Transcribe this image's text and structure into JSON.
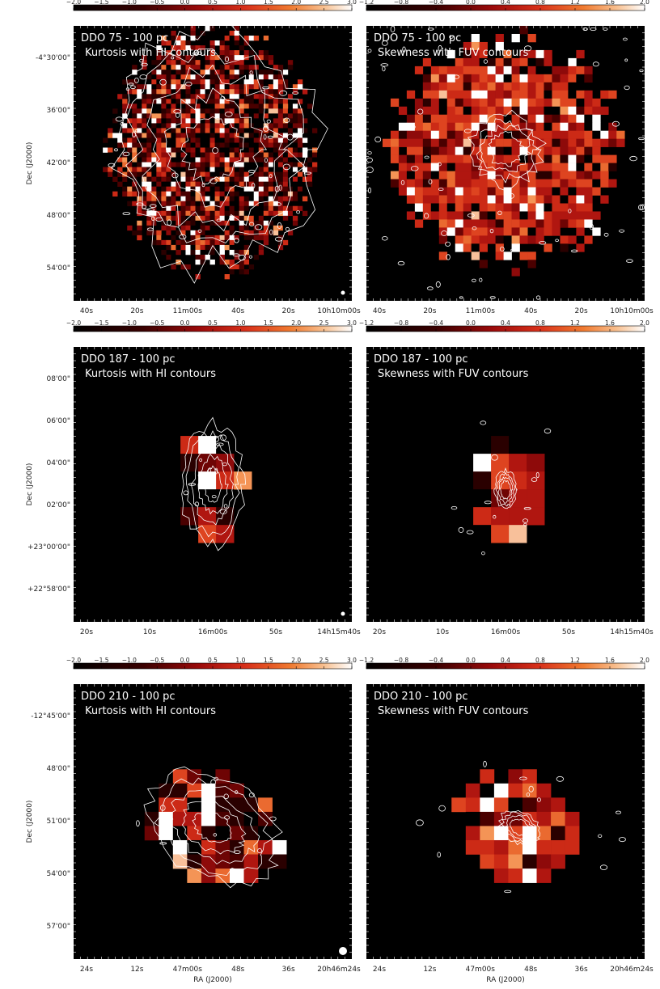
{
  "colors": {
    "background": "#ffffff",
    "panel": "#000000",
    "contour": "#ffffff"
  },
  "chart_data": [
    {
      "type": "heatmap",
      "row": 0,
      "col": 0,
      "seed": 11,
      "title_line1": "DDO 75 - 100 pc",
      "title_line2": "Kurtosis with HI contours",
      "colorbar": {
        "ticks": [
          "−2.0",
          "−1.5",
          "−1.0",
          "−0.5",
          "0.0",
          "0.5",
          "1.0",
          "1.5",
          "2.0",
          "2.5",
          "3.0"
        ],
        "range": [
          -2.0,
          3.0
        ]
      },
      "xticks": [
        "40s",
        "20s",
        "11m00s",
        "40s",
        "20s",
        "10h10m00s"
      ],
      "yticks": [
        "-4°30'00\"",
        "36'00\"",
        "42'00\"",
        "48'00\"",
        "54'00\""
      ],
      "ylabel": "Dec (J2000)",
      "xlabel": "",
      "blob": {
        "cx": 0.5,
        "cy": 0.45,
        "rx": 0.36,
        "ry": 0.42,
        "grid": 0.0175,
        "shape": "irregular"
      }
    },
    {
      "type": "heatmap",
      "row": 0,
      "col": 1,
      "seed": 23,
      "title_line1": "DDO 75 - 100 pc",
      "title_line2": "Skewness with FUV contours",
      "colorbar": {
        "ticks": [
          "−1.2",
          "−0.8",
          "−0.4",
          "0.0",
          "0.4",
          "0.8",
          "1.2",
          "1.6",
          "2.0"
        ],
        "range": [
          -1.2,
          2.0
        ]
      },
      "xticks": [
        "40s",
        "20s",
        "11m00s",
        "40s",
        "20s",
        "10h10m00s"
      ],
      "yticks": [],
      "ylabel": "",
      "xlabel": "",
      "blob": {
        "cx": 0.5,
        "cy": 0.45,
        "rx": 0.4,
        "ry": 0.4,
        "grid": 0.029,
        "shape": "irregular"
      }
    },
    {
      "type": "heatmap",
      "row": 1,
      "col": 0,
      "seed": 37,
      "title_line1": "DDO 187 - 100 pc",
      "title_line2": "Kurtosis with HI contours",
      "colorbar": {
        "ticks": [
          "−2.0",
          "−1.5",
          "−1.0",
          "−0.5",
          "0.0",
          "0.5",
          "1.0",
          "1.5",
          "2.0",
          "2.5",
          "3.0"
        ],
        "range": [
          -2.0,
          3.0
        ]
      },
      "xticks": [
        "20s",
        "10s",
        "16m00s",
        "50s",
        "14h15m40s"
      ],
      "yticks": [
        "08'00\"",
        "06'00\"",
        "04'00\"",
        "02'00\"",
        "+23°00'00\"",
        "+22°58'00\""
      ],
      "ylabel": "Dec (J2000)",
      "xlabel": "",
      "blob": {
        "cx": 0.5,
        "cy": 0.5,
        "rx": 0.11,
        "ry": 0.22,
        "grid": 0.064,
        "shape": "compact"
      }
    },
    {
      "type": "heatmap",
      "row": 1,
      "col": 1,
      "seed": 41,
      "title_line1": "DDO 187 - 100 pc",
      "title_line2": "Skewness with FUV contours",
      "colorbar": {
        "ticks": [
          "−1.2",
          "−0.8",
          "−0.4",
          "0.0",
          "0.4",
          "0.8",
          "1.2",
          "1.6",
          "2.0"
        ],
        "range": [
          -1.2,
          2.0
        ]
      },
      "xticks": [
        "20s",
        "10s",
        "16m00s",
        "50s",
        "14h15m40s"
      ],
      "yticks": [],
      "ylabel": "",
      "xlabel": "",
      "blob": {
        "cx": 0.5,
        "cy": 0.52,
        "rx": 0.12,
        "ry": 0.22,
        "grid": 0.064,
        "shape": "compact"
      }
    },
    {
      "type": "heatmap",
      "row": 2,
      "col": 0,
      "seed": 53,
      "title_line1": "DDO 210 - 100 pc",
      "title_line2": "Kurtosis with HI contours",
      "colorbar": {
        "ticks": [
          "−2.0",
          "−1.5",
          "−1.0",
          "−0.5",
          "0.0",
          "0.5",
          "1.0",
          "1.5",
          "2.0",
          "2.5",
          "3.0"
        ],
        "range": [
          -2.0,
          3.0
        ]
      },
      "xticks": [
        "24s",
        "12s",
        "47m00s",
        "48s",
        "36s",
        "20h46m24s"
      ],
      "yticks": [
        "-12°45'00\"",
        "48'00\"",
        "51'00\"",
        "54'00\"",
        "57'00\""
      ],
      "ylabel": "Dec (J2000)",
      "xlabel": "RA (J2000)",
      "blob": {
        "cx": 0.5,
        "cy": 0.52,
        "rx": 0.26,
        "ry": 0.18,
        "grid": 0.051,
        "shape": "tilted"
      }
    },
    {
      "type": "heatmap",
      "row": 2,
      "col": 1,
      "seed": 67,
      "title_line1": "DDO 210 - 100 pc",
      "title_line2": "Skewness with FUV contours",
      "colorbar": {
        "ticks": [
          "−1.2",
          "−0.8",
          "−0.4",
          "0.0",
          "0.4",
          "0.8",
          "1.2",
          "1.6",
          "2.0"
        ],
        "range": [
          -1.2,
          2.0
        ]
      },
      "xticks": [
        "24s",
        "12s",
        "47m00s",
        "48s",
        "36s",
        "20h46m24s"
      ],
      "yticks": [],
      "ylabel": "",
      "xlabel": "RA (J2000)",
      "blob": {
        "cx": 0.55,
        "cy": 0.52,
        "rx": 0.24,
        "ry": 0.18,
        "grid": 0.051,
        "shape": "tilted"
      }
    }
  ]
}
